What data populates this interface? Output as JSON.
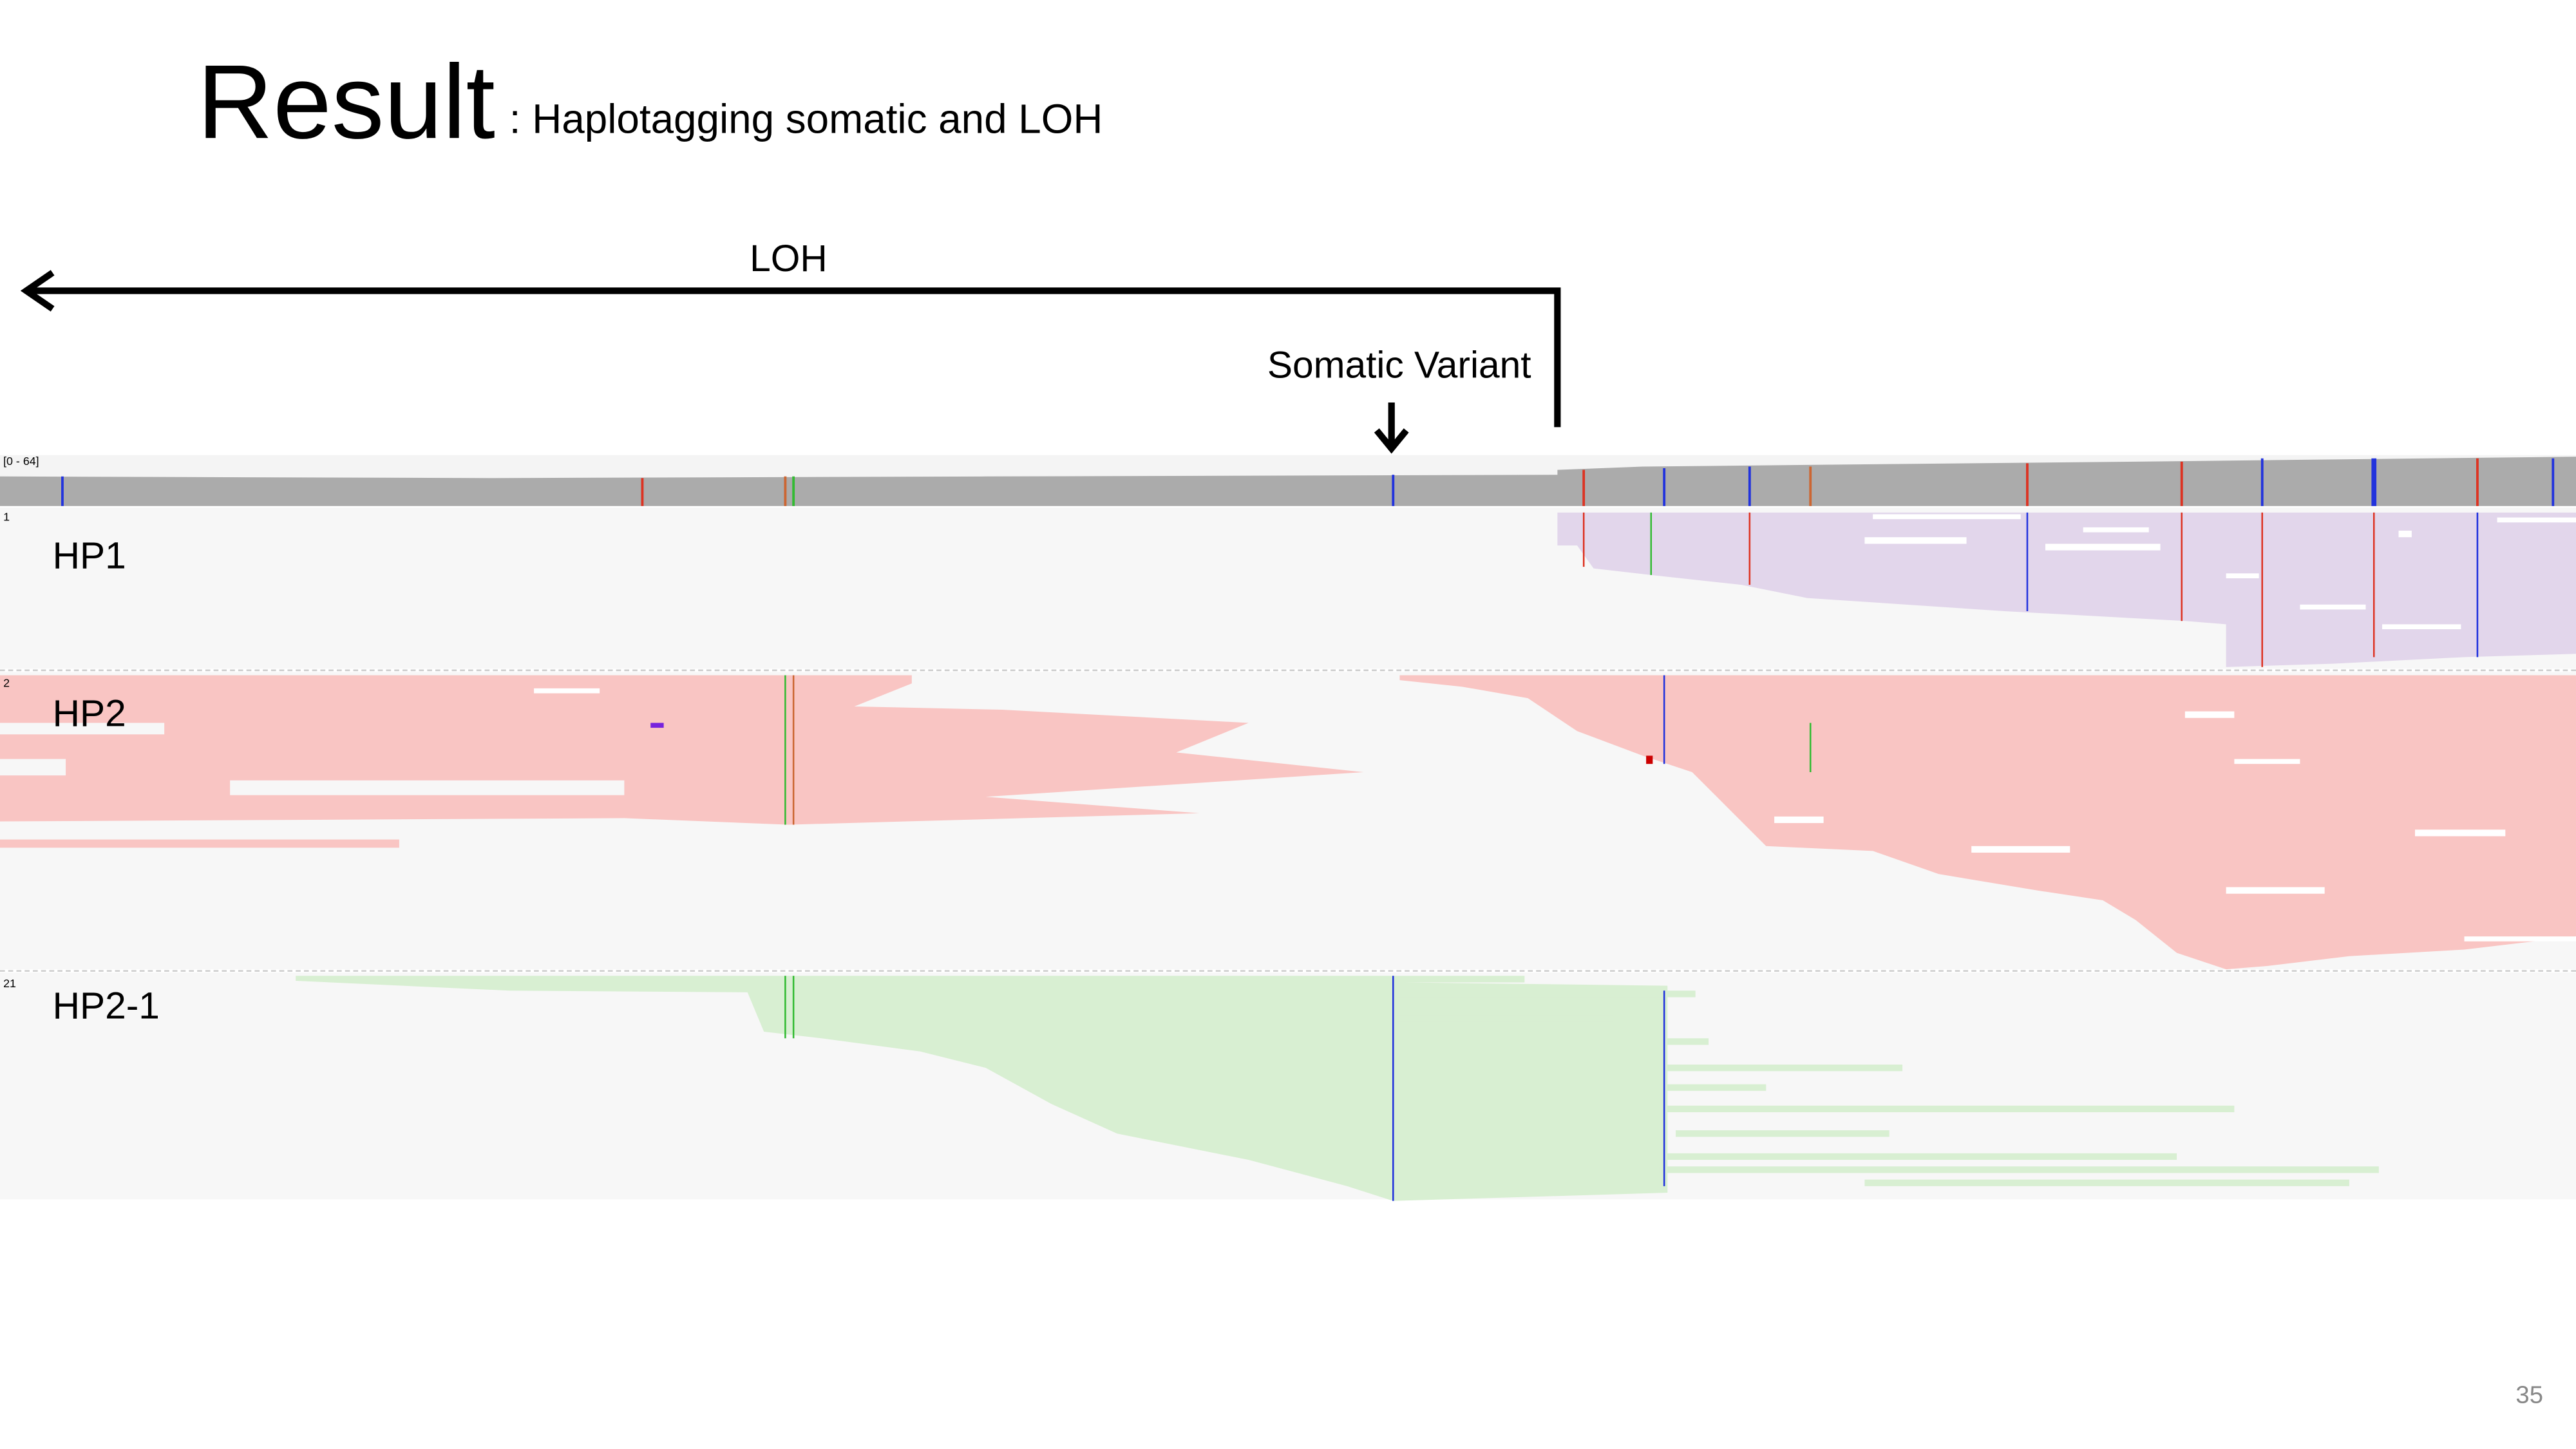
{
  "header": {
    "title": "Result",
    "subtitle": ": Haplotagging somatic and LOH"
  },
  "annotations": {
    "loh": "LOH",
    "somatic_variant": "Somatic Variant"
  },
  "igv": {
    "coverage_range": "[0 - 64]",
    "tracks": [
      {
        "index": "1",
        "label": "HP1"
      },
      {
        "index": "2",
        "label": "HP2"
      },
      {
        "index": "21",
        "label": "HP2-1"
      }
    ]
  },
  "footer": {
    "page_number": "35"
  }
}
